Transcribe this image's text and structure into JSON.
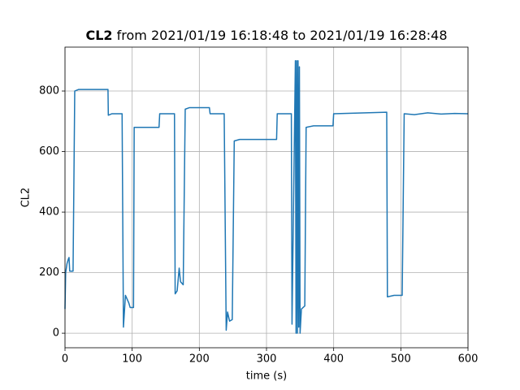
{
  "chart_data": {
    "type": "line",
    "title_prefix": "CL2",
    "title": "from 2021/01/19 16:18:48 to 2021/01/19 16:28:48",
    "xlabel": "time (s)",
    "ylabel": "CL2",
    "color": "#1f77b4",
    "grid": true,
    "xlim": [
      0,
      600
    ],
    "ylim": [
      -48,
      945
    ],
    "xticks": [
      0,
      100,
      200,
      300,
      400,
      500,
      600
    ],
    "yticks": [
      0,
      200,
      400,
      600,
      800
    ],
    "x": [
      0,
      1,
      3,
      5,
      6,
      7,
      12,
      14.5,
      20,
      40,
      64,
      64.5,
      70,
      85,
      87,
      90,
      95,
      97,
      102,
      103,
      110,
      140,
      141,
      163,
      164,
      167,
      170,
      172,
      176,
      179,
      185,
      215,
      216,
      237,
      240,
      242,
      245,
      249,
      252,
      260,
      315,
      316,
      337,
      338,
      343,
      344,
      345,
      346,
      347,
      348,
      349,
      350,
      352,
      357,
      359,
      370,
      399,
      400,
      479,
      480,
      490,
      502,
      505,
      520,
      540,
      560,
      580,
      600
    ],
    "values": [
      80,
      200,
      230,
      245,
      250,
      205,
      205,
      800,
      805,
      805,
      805,
      720,
      725,
      725,
      20,
      125,
      100,
      85,
      85,
      680,
      680,
      680,
      725,
      725,
      130,
      140,
      215,
      170,
      160,
      740,
      745,
      745,
      725,
      725,
      10,
      70,
      40,
      45,
      635,
      640,
      640,
      725,
      725,
      30,
      900,
      0,
      900,
      0,
      900,
      20,
      880,
      0,
      80,
      90,
      680,
      685,
      685,
      725,
      730,
      120,
      125,
      125,
      725,
      722,
      728,
      724,
      726,
      725
    ]
  }
}
